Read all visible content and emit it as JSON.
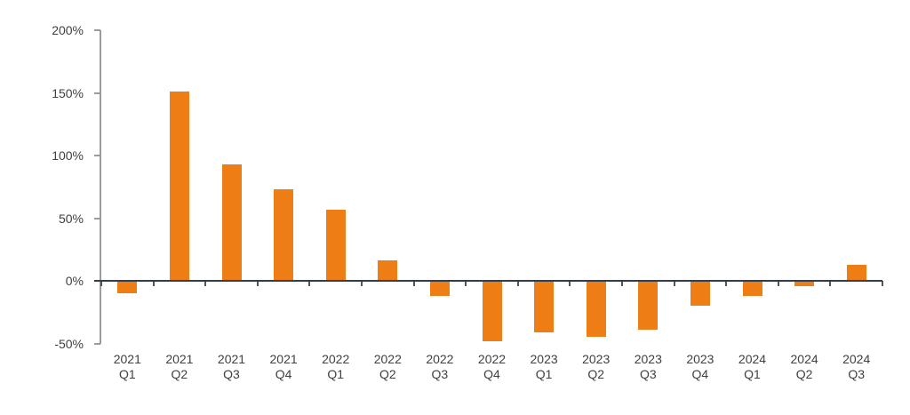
{
  "chart_data": {
    "type": "bar",
    "title": "",
    "xlabel": "",
    "ylabel": "",
    "unit": "%",
    "categories": [
      "2021 Q1",
      "2021 Q2",
      "2021 Q3",
      "2021 Q4",
      "2022 Q1",
      "2022 Q2",
      "2022 Q3",
      "2022 Q4",
      "2023 Q1",
      "2023 Q2",
      "2023 Q3",
      "2023 Q4",
      "2024 Q1",
      "2024 Q2",
      "2024 Q3"
    ],
    "values": [
      -10,
      151,
      93,
      73,
      57,
      16,
      -12,
      -48,
      -41,
      -45,
      -39,
      -20,
      -12,
      -4,
      13
    ],
    "y_ticks": [
      {
        "value": 200,
        "label": "200%"
      },
      {
        "value": 150,
        "label": "150%"
      },
      {
        "value": 100,
        "label": "100%"
      },
      {
        "value": 50,
        "label": "50%"
      },
      {
        "value": 0,
        "label": "0%"
      },
      {
        "value": -50,
        "label": "-50%"
      }
    ],
    "ylim": [
      -50,
      200
    ],
    "grid": false,
    "legend": "none",
    "colors": {
      "bar": "#ED7D14",
      "zero_line": "#333f48",
      "axis": "#9c9c9c",
      "tick": "#555555",
      "text": "#404040"
    }
  }
}
